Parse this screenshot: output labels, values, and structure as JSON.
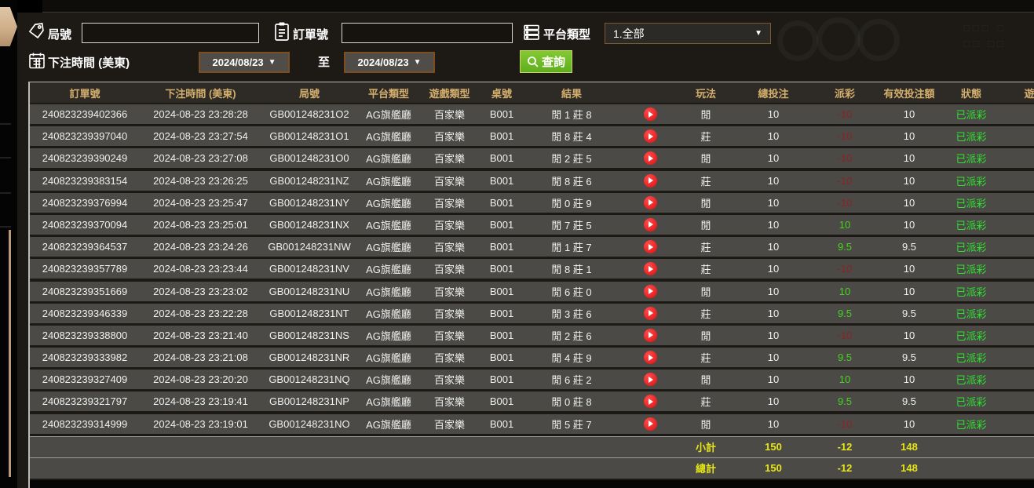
{
  "filters": {
    "round_label": "局號",
    "round_value": "",
    "order_label": "訂單號",
    "order_value": "",
    "platform_label": "平台類型",
    "platform_value": "1.全部",
    "bettime_label": "下注時間 (美東)",
    "date_from": "2024/08/23",
    "date_to": "2024/08/23",
    "to_label": "至",
    "search_label": "查詢"
  },
  "table": {
    "columns": [
      "訂單號",
      "下注時間 (美東)",
      "局號",
      "平台類型",
      "遊戲類型",
      "桌號",
      "結果",
      "",
      "玩法",
      "總投注",
      "派彩",
      "有效投注額",
      "狀態",
      "遊戲"
    ],
    "rows": [
      {
        "order": "240823239402366",
        "time": "2024-08-23 23:28:28",
        "round": "GB001248231O2",
        "platform": "AG旗艦廳",
        "game": "百家樂",
        "table": "B001",
        "result": "閒 1 莊 8",
        "play": "閒",
        "bet": "10",
        "payout": "-10",
        "valid": "10",
        "status": "已派彩"
      },
      {
        "order": "240823239397040",
        "time": "2024-08-23 23:27:54",
        "round": "GB001248231O1",
        "platform": "AG旗艦廳",
        "game": "百家樂",
        "table": "B001",
        "result": "閒 8 莊 4",
        "play": "莊",
        "bet": "10",
        "payout": "-10",
        "valid": "10",
        "status": "已派彩"
      },
      {
        "order": "240823239390249",
        "time": "2024-08-23 23:27:08",
        "round": "GB001248231O0",
        "platform": "AG旗艦廳",
        "game": "百家樂",
        "table": "B001",
        "result": "閒 2 莊 5",
        "play": "閒",
        "bet": "10",
        "payout": "-10",
        "valid": "10",
        "status": "已派彩"
      },
      {
        "order": "240823239383154",
        "time": "2024-08-23 23:26:25",
        "round": "GB001248231NZ",
        "platform": "AG旗艦廳",
        "game": "百家樂",
        "table": "B001",
        "result": "閒 8 莊 6",
        "play": "莊",
        "bet": "10",
        "payout": "-10",
        "valid": "10",
        "status": "已派彩"
      },
      {
        "order": "240823239376994",
        "time": "2024-08-23 23:25:47",
        "round": "GB001248231NY",
        "platform": "AG旗艦廳",
        "game": "百家樂",
        "table": "B001",
        "result": "閒 0 莊 9",
        "play": "閒",
        "bet": "10",
        "payout": "-10",
        "valid": "10",
        "status": "已派彩"
      },
      {
        "order": "240823239370094",
        "time": "2024-08-23 23:25:01",
        "round": "GB001248231NX",
        "platform": "AG旗艦廳",
        "game": "百家樂",
        "table": "B001",
        "result": "閒 7 莊 5",
        "play": "閒",
        "bet": "10",
        "payout": "10",
        "valid": "10",
        "status": "已派彩"
      },
      {
        "order": "240823239364537",
        "time": "2024-08-23 23:24:26",
        "round": "GB001248231NW",
        "platform": "AG旗艦廳",
        "game": "百家樂",
        "table": "B001",
        "result": "閒 1 莊 7",
        "play": "莊",
        "bet": "10",
        "payout": "9.5",
        "valid": "9.5",
        "status": "已派彩"
      },
      {
        "order": "240823239357789",
        "time": "2024-08-23 23:23:44",
        "round": "GB001248231NV",
        "platform": "AG旗艦廳",
        "game": "百家樂",
        "table": "B001",
        "result": "閒 8 莊 1",
        "play": "莊",
        "bet": "10",
        "payout": "-10",
        "valid": "10",
        "status": "已派彩"
      },
      {
        "order": "240823239351669",
        "time": "2024-08-23 23:23:02",
        "round": "GB001248231NU",
        "platform": "AG旗艦廳",
        "game": "百家樂",
        "table": "B001",
        "result": "閒 6 莊 0",
        "play": "閒",
        "bet": "10",
        "payout": "10",
        "valid": "10",
        "status": "已派彩"
      },
      {
        "order": "240823239346339",
        "time": "2024-08-23 23:22:28",
        "round": "GB001248231NT",
        "platform": "AG旗艦廳",
        "game": "百家樂",
        "table": "B001",
        "result": "閒 3 莊 6",
        "play": "莊",
        "bet": "10",
        "payout": "9.5",
        "valid": "9.5",
        "status": "已派彩"
      },
      {
        "order": "240823239338800",
        "time": "2024-08-23 23:21:40",
        "round": "GB001248231NS",
        "platform": "AG旗艦廳",
        "game": "百家樂",
        "table": "B001",
        "result": "閒 2 莊 6",
        "play": "閒",
        "bet": "10",
        "payout": "-10",
        "valid": "10",
        "status": "已派彩"
      },
      {
        "order": "240823239333982",
        "time": "2024-08-23 23:21:08",
        "round": "GB001248231NR",
        "platform": "AG旗艦廳",
        "game": "百家樂",
        "table": "B001",
        "result": "閒 4 莊 9",
        "play": "莊",
        "bet": "10",
        "payout": "9.5",
        "valid": "9.5",
        "status": "已派彩"
      },
      {
        "order": "240823239327409",
        "time": "2024-08-23 23:20:20",
        "round": "GB001248231NQ",
        "platform": "AG旗艦廳",
        "game": "百家樂",
        "table": "B001",
        "result": "閒 6 莊 2",
        "play": "閒",
        "bet": "10",
        "payout": "10",
        "valid": "10",
        "status": "已派彩"
      },
      {
        "order": "240823239321797",
        "time": "2024-08-23 23:19:41",
        "round": "GB001248231NP",
        "platform": "AG旗艦廳",
        "game": "百家樂",
        "table": "B001",
        "result": "閒 0 莊 8",
        "play": "莊",
        "bet": "10",
        "payout": "9.5",
        "valid": "9.5",
        "status": "已派彩"
      },
      {
        "order": "240823239314999",
        "time": "2024-08-23 23:19:01",
        "round": "GB001248231NO",
        "platform": "AG旗艦廳",
        "game": "百家樂",
        "table": "B001",
        "result": "閒 5 莊 7",
        "play": "閒",
        "bet": "10",
        "payout": "-10",
        "valid": "10",
        "status": "已派彩"
      }
    ],
    "summary": [
      {
        "label": "小計",
        "bet": "150",
        "payout": "-12",
        "valid": "148"
      },
      {
        "label": "總計",
        "bet": "150",
        "payout": "-12",
        "valid": "148"
      }
    ]
  },
  "colors": {
    "header_gold": "#d4ae6c",
    "win_green": "#46d321",
    "loss_red": "#8b2424",
    "status_green": "#2de32d",
    "summary_yellow": "#e6e617",
    "accent_tan": "#cfae8a",
    "search_green": "#6fbe27"
  }
}
